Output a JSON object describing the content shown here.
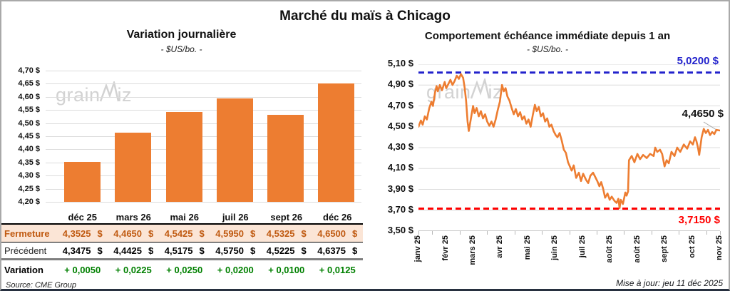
{
  "page": {
    "title": "Marché du maïs à Chicago",
    "source": "Source: CME Group",
    "updated": "Mise à jour: jeu 11 déc 2025",
    "watermark_pre": "grain",
    "watermark_post": "iz"
  },
  "colors": {
    "accent_orange": "#ED7D31",
    "ref_blue": "#2222CC",
    "ref_red": "#FF0000",
    "variation_green": "#008000",
    "fermeture_bg": "#FBE5D6",
    "fermeture_text": "#C05A11",
    "gridline": "#DCDCDC",
    "watermark": "#D2D2D2"
  },
  "chart_data": [
    {
      "type": "bar",
      "title": "Variation journalière",
      "subtitle": "- $US/bo. -",
      "categories": [
        "déc 25",
        "mars 26",
        "mai 26",
        "juil 26",
        "sept 26",
        "déc 26"
      ],
      "values": [
        4.3525,
        4.465,
        4.5425,
        4.595,
        4.5325,
        4.65
      ],
      "ylim": [
        4.2,
        4.7
      ],
      "ytick_step": 0.05,
      "ytick_labels": [
        "4,70 $",
        "4,65 $",
        "4,60 $",
        "4,55 $",
        "4,50 $",
        "4,45 $",
        "4,40 $",
        "4,35 $",
        "4,30 $",
        "4,25 $",
        "4,20 $"
      ],
      "bar_color": "#ED7D31",
      "grid": true,
      "xlabel": "",
      "ylabel": "$US/bo."
    },
    {
      "type": "line",
      "title": "Comportement échéance immédiate depuis 1 an",
      "subtitle": "- $US/bo. -",
      "x_labels": [
        "janv 25",
        "févr 25",
        "mars 25",
        "avr 25",
        "mai 25",
        "juin 25",
        "juil 25",
        "août 25",
        "août 25",
        "sept 25",
        "oct 25",
        "nov 25"
      ],
      "ylim": [
        3.5,
        5.1
      ],
      "ytick_step": 0.2,
      "ytick_labels": [
        "5,10 $",
        "4,90 $",
        "4,70 $",
        "4,50 $",
        "4,30 $",
        "4,10 $",
        "3,90 $",
        "3,70 $",
        "3,50 $"
      ],
      "line_color": "#ED7D31",
      "grid": true,
      "ref_lines": [
        {
          "value": 5.02,
          "label": "5,0200 $",
          "color": "#2222CC",
          "style": "dashed"
        },
        {
          "value": 3.715,
          "label": "3,7150 $",
          "color": "#FF0000",
          "style": "dashed"
        }
      ],
      "last_value": 4.465,
      "last_label": "4,4650 $",
      "points": [
        [
          0.0,
          4.5
        ],
        [
          0.008,
          4.56
        ],
        [
          0.014,
          4.52
        ],
        [
          0.021,
          4.6
        ],
        [
          0.028,
          4.57
        ],
        [
          0.036,
          4.68
        ],
        [
          0.043,
          4.74
        ],
        [
          0.048,
          4.7
        ],
        [
          0.055,
          4.83
        ],
        [
          0.06,
          4.89
        ],
        [
          0.064,
          4.84
        ],
        [
          0.071,
          4.9
        ],
        [
          0.078,
          4.85
        ],
        [
          0.087,
          4.93
        ],
        [
          0.092,
          4.87
        ],
        [
          0.099,
          4.91
        ],
        [
          0.106,
          4.95
        ],
        [
          0.113,
          4.9
        ],
        [
          0.12,
          4.94
        ],
        [
          0.127,
          4.99
        ],
        [
          0.134,
          4.96
        ],
        [
          0.141,
          5.005
        ],
        [
          0.148,
          4.97
        ],
        [
          0.153,
          4.88
        ],
        [
          0.158,
          4.75
        ],
        [
          0.163,
          4.55
        ],
        [
          0.167,
          4.46
        ],
        [
          0.174,
          4.58
        ],
        [
          0.181,
          4.7
        ],
        [
          0.186,
          4.63
        ],
        [
          0.193,
          4.68
        ],
        [
          0.2,
          4.6
        ],
        [
          0.207,
          4.65
        ],
        [
          0.214,
          4.58
        ],
        [
          0.221,
          4.62
        ],
        [
          0.228,
          4.55
        ],
        [
          0.235,
          4.51
        ],
        [
          0.242,
          4.55
        ],
        [
          0.249,
          4.5
        ],
        [
          0.256,
          4.57
        ],
        [
          0.263,
          4.66
        ],
        [
          0.27,
          4.74
        ],
        [
          0.277,
          4.9
        ],
        [
          0.283,
          4.84
        ],
        [
          0.289,
          4.87
        ],
        [
          0.295,
          4.79
        ],
        [
          0.302,
          4.75
        ],
        [
          0.309,
          4.68
        ],
        [
          0.316,
          4.62
        ],
        [
          0.323,
          4.67
        ],
        [
          0.33,
          4.6
        ],
        [
          0.337,
          4.64
        ],
        [
          0.344,
          4.57
        ],
        [
          0.351,
          4.6
        ],
        [
          0.358,
          4.53
        ],
        [
          0.365,
          4.57
        ],
        [
          0.372,
          4.5
        ],
        [
          0.379,
          4.61
        ],
        [
          0.386,
          4.71
        ],
        [
          0.392,
          4.65
        ],
        [
          0.399,
          4.69
        ],
        [
          0.406,
          4.6
        ],
        [
          0.413,
          4.63
        ],
        [
          0.42,
          4.55
        ],
        [
          0.427,
          4.58
        ],
        [
          0.434,
          4.5
        ],
        [
          0.441,
          4.52
        ],
        [
          0.448,
          4.46
        ],
        [
          0.455,
          4.42
        ],
        [
          0.461,
          4.4
        ],
        [
          0.468,
          4.44
        ],
        [
          0.475,
          4.37
        ],
        [
          0.482,
          4.28
        ],
        [
          0.489,
          4.25
        ],
        [
          0.496,
          4.16
        ],
        [
          0.508,
          4.08
        ],
        [
          0.515,
          4.13
        ],
        [
          0.523,
          4.01
        ],
        [
          0.532,
          4.06
        ],
        [
          0.539,
          3.98
        ],
        [
          0.546,
          4.05
        ],
        [
          0.556,
          3.99
        ],
        [
          0.563,
          3.96
        ],
        [
          0.57,
          4.03
        ],
        [
          0.579,
          4.06
        ],
        [
          0.586,
          4.02
        ],
        [
          0.593,
          3.98
        ],
        [
          0.6,
          3.93
        ],
        [
          0.606,
          3.97
        ],
        [
          0.612,
          3.91
        ],
        [
          0.619,
          3.82
        ],
        [
          0.627,
          3.86
        ],
        [
          0.634,
          3.8
        ],
        [
          0.641,
          3.83
        ],
        [
          0.65,
          3.79
        ],
        [
          0.657,
          3.77
        ],
        [
          0.663,
          3.81
        ],
        [
          0.667,
          3.72
        ],
        [
          0.671,
          3.8
        ],
        [
          0.678,
          3.76
        ],
        [
          0.686,
          3.87
        ],
        [
          0.69,
          3.84
        ],
        [
          0.695,
          3.88
        ],
        [
          0.698,
          4.18
        ],
        [
          0.707,
          4.22
        ],
        [
          0.716,
          4.16
        ],
        [
          0.726,
          4.24
        ],
        [
          0.735,
          4.19
        ],
        [
          0.745,
          4.23
        ],
        [
          0.757,
          4.2
        ],
        [
          0.768,
          4.24
        ],
        [
          0.78,
          4.22
        ],
        [
          0.785,
          4.3
        ],
        [
          0.792,
          4.26
        ],
        [
          0.801,
          4.28
        ],
        [
          0.808,
          4.24
        ],
        [
          0.816,
          4.12
        ],
        [
          0.823,
          4.18
        ],
        [
          0.83,
          4.15
        ],
        [
          0.839,
          4.26
        ],
        [
          0.849,
          4.22
        ],
        [
          0.858,
          4.3
        ],
        [
          0.868,
          4.26
        ],
        [
          0.88,
          4.33
        ],
        [
          0.891,
          4.29
        ],
        [
          0.901,
          4.36
        ],
        [
          0.91,
          4.33
        ],
        [
          0.917,
          4.4
        ],
        [
          0.922,
          4.36
        ],
        [
          0.927,
          4.3
        ],
        [
          0.931,
          4.23
        ],
        [
          0.939,
          4.4
        ],
        [
          0.946,
          4.48
        ],
        [
          0.953,
          4.44
        ],
        [
          0.96,
          4.47
        ],
        [
          0.967,
          4.42
        ],
        [
          0.974,
          4.45
        ],
        [
          0.981,
          4.43
        ],
        [
          0.988,
          4.47
        ],
        [
          0.998,
          4.465
        ]
      ]
    }
  ],
  "table": {
    "rows": [
      {
        "key": "fermeture",
        "label": "Fermeture",
        "values": [
          "4,3525",
          "4,4650",
          "4,5425",
          "4,5950",
          "4,5325",
          "4,6500"
        ],
        "suffix": "$"
      },
      {
        "key": "precedent",
        "label": "Précédent",
        "values": [
          "4,3475",
          "4,4425",
          "4,5175",
          "4,5750",
          "4,5225",
          "4,6375"
        ],
        "suffix": "$"
      },
      {
        "key": "variation",
        "label": "Variation",
        "values": [
          "+ 0,0050",
          "+ 0,0225",
          "+ 0,0250",
          "+ 0,0200",
          "+ 0,0100",
          "+ 0,0125"
        ],
        "suffix": ""
      }
    ]
  }
}
